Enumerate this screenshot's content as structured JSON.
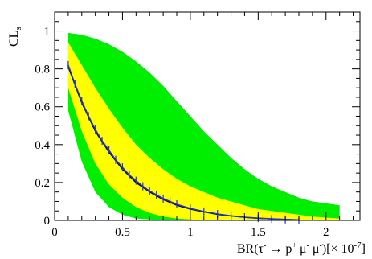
{
  "chart_data": {
    "type": "area",
    "ylabel": {
      "main": "CL",
      "sub": "s"
    },
    "xlabel": {
      "pre": "BR(τ",
      "sup1": "-",
      "arrow": " → p",
      "sup2": "+",
      "mu1": " μ",
      "sup3": "-",
      "mu2": " μ",
      "sup4": "-",
      "post": ")[× 10",
      "exp": "-7",
      "close": "]"
    },
    "xlim": [
      0,
      2.25
    ],
    "ylim": [
      0,
      1.1
    ],
    "x_ticks": [
      {
        "v": 0,
        "label": "0"
      },
      {
        "v": 0.5,
        "label": "0.5"
      },
      {
        "v": 1,
        "label": "1"
      },
      {
        "v": 1.5,
        "label": "1.5"
      },
      {
        "v": 2,
        "label": "2"
      }
    ],
    "y_ticks": [
      {
        "v": 0,
        "label": "0"
      },
      {
        "v": 0.2,
        "label": "0.2"
      },
      {
        "v": 0.4,
        "label": "0.4"
      },
      {
        "v": 0.6,
        "label": "0.6"
      },
      {
        "v": 0.8,
        "label": "0.8"
      },
      {
        "v": 1,
        "label": "1"
      }
    ],
    "x": [
      0.1,
      0.2,
      0.3,
      0.4,
      0.5,
      0.6,
      0.7,
      0.8,
      0.9,
      1.0,
      1.1,
      1.2,
      1.3,
      1.4,
      1.5,
      1.6,
      1.7,
      1.8,
      1.9,
      2.0,
      2.1
    ],
    "band_2sigma_upper": [
      0.99,
      0.98,
      0.96,
      0.93,
      0.89,
      0.84,
      0.78,
      0.71,
      0.63,
      0.55,
      0.47,
      0.4,
      0.33,
      0.27,
      0.22,
      0.18,
      0.15,
      0.12,
      0.1,
      0.09,
      0.08
    ],
    "band_1sigma_upper": [
      0.94,
      0.82,
      0.7,
      0.59,
      0.49,
      0.4,
      0.33,
      0.27,
      0.22,
      0.18,
      0.15,
      0.12,
      0.1,
      0.08,
      0.06,
      0.05,
      0.04,
      0.03,
      0.02,
      0.015,
      0.01
    ],
    "band_1sigma_lower": [
      0.7,
      0.47,
      0.3,
      0.19,
      0.12,
      0.07,
      0.04,
      0.02,
      0.01,
      0.005,
      0,
      0,
      0,
      0,
      0,
      0,
      0,
      0,
      0,
      0,
      0
    ],
    "band_2sigma_lower": [
      0.58,
      0.31,
      0.15,
      0.07,
      0.03,
      0.01,
      0.005,
      0,
      0,
      0,
      0,
      0,
      0,
      0,
      0,
      0,
      0,
      0,
      0,
      0,
      0
    ],
    "series": [
      {
        "kind": "expected",
        "color": "#000000",
        "x": [
          0.1,
          0.2,
          0.3,
          0.4,
          0.5,
          0.6,
          0.7,
          0.8,
          0.9,
          1.0,
          1.1,
          1.2,
          1.3,
          1.4,
          1.5,
          1.6,
          1.7,
          1.8
        ],
        "values": [
          0.81,
          0.62,
          0.47,
          0.36,
          0.27,
          0.2,
          0.15,
          0.11,
          0.08,
          0.06,
          0.045,
          0.032,
          0.023,
          0.016,
          0.011,
          0.008,
          0.005,
          0.003
        ]
      },
      {
        "kind": "observed",
        "color": "#2233cc",
        "x": [
          0.1,
          0.15,
          0.2,
          0.25,
          0.3,
          0.35,
          0.4,
          0.45,
          0.5,
          0.55,
          0.6,
          0.65,
          0.7,
          0.75,
          0.8,
          0.85,
          0.9,
          1.0,
          1.1,
          1.2,
          1.3,
          1.4,
          1.5,
          1.6,
          1.7,
          1.8
        ],
        "values": [
          0.82,
          0.72,
          0.63,
          0.55,
          0.48,
          0.42,
          0.37,
          0.32,
          0.28,
          0.24,
          0.21,
          0.18,
          0.155,
          0.135,
          0.115,
          0.1,
          0.085,
          0.063,
          0.047,
          0.034,
          0.024,
          0.017,
          0.012,
          0.008,
          0.005,
          0.003
        ]
      }
    ],
    "colors": {
      "band2": "#00ee00",
      "band1": "#ffff00",
      "expected": "#000000",
      "observed": "#2233cc"
    }
  }
}
